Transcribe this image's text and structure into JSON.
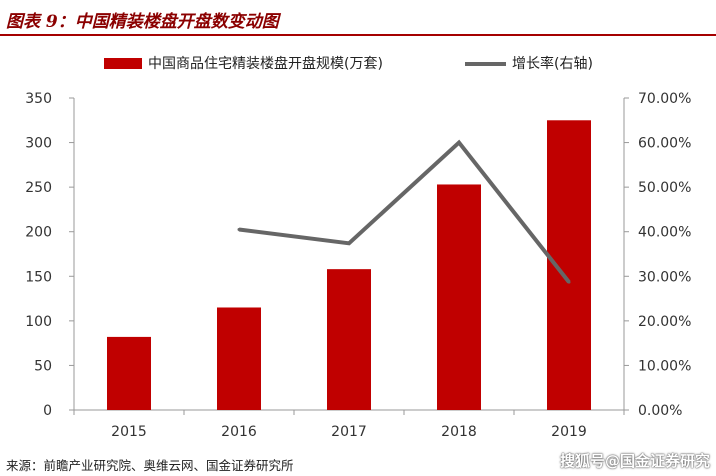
{
  "header": {
    "title": "图表 9：中国精装楼盘开盘数变动图"
  },
  "footer": {
    "source": "来源：前瞻产业研究院、奥维云网、国金证券研究所",
    "watermark": "搜狐号@国金证券研究"
  },
  "colors": {
    "bar": "#c00000",
    "line": "#666666",
    "title": "#8b0000"
  },
  "chart_data": {
    "type": "bar",
    "categories": [
      "2015",
      "2016",
      "2017",
      "2018",
      "2019"
    ],
    "series": [
      {
        "name": "中国商品住宅精装楼盘开盘规模(万套)",
        "type": "bar",
        "axis": "left",
        "values": [
          82,
          115,
          158,
          253,
          325
        ]
      },
      {
        "name": "增长率(右轴)",
        "type": "line",
        "axis": "right",
        "values": [
          null,
          40.5,
          37.4,
          60.0,
          28.7
        ]
      }
    ],
    "y_left": {
      "min": 0,
      "max": 350,
      "step": 50,
      "ticks": [
        "0",
        "50",
        "100",
        "150",
        "200",
        "250",
        "300",
        "350"
      ]
    },
    "y_right": {
      "min": 0,
      "max": 70,
      "step": 10,
      "ticks": [
        "0.00%",
        "10.00%",
        "20.00%",
        "30.00%",
        "40.00%",
        "50.00%",
        "60.00%",
        "70.00%"
      ]
    },
    "legend_position": "top",
    "grid": false
  }
}
